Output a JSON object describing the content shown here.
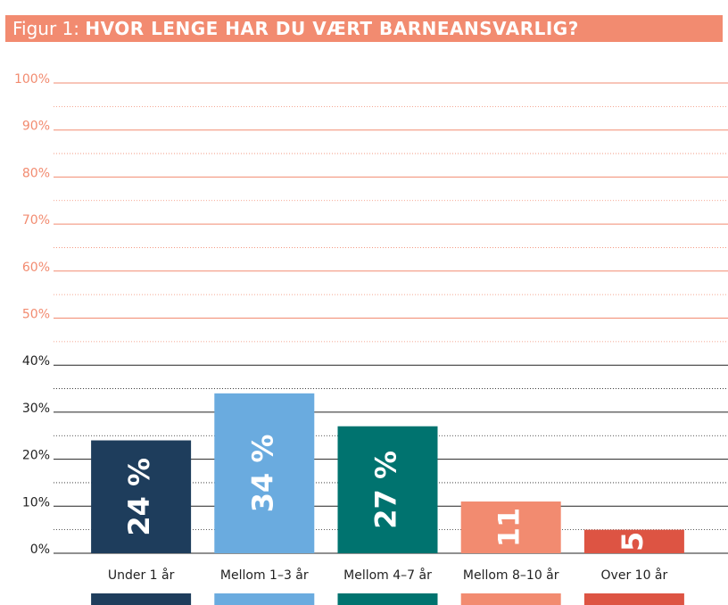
{
  "chart_data": {
    "type": "bar",
    "title_prefix": "Figur 1:",
    "title": "HVOR LENGE HAR DU VÆRT BARNEANSVARLIG?",
    "categories": [
      "Under 1 år",
      "Mellom 1–3 år",
      "Mellom 4–7 år",
      "Mellom 8–10 år",
      "Over 10 år"
    ],
    "values": [
      24,
      34,
      27,
      11,
      5
    ],
    "value_labels": [
      "24 %",
      "34 %",
      "27 %",
      "11",
      "5"
    ],
    "colors": [
      "#1e3d5c",
      "#6aabdf",
      "#00736f",
      "#f28b70",
      "#dd5443"
    ],
    "ylim": [
      0,
      100
    ],
    "yticks": [
      {
        "value": 0,
        "label": "0%"
      },
      {
        "value": 10,
        "label": "10%"
      },
      {
        "value": 20,
        "label": "20%"
      },
      {
        "value": 30,
        "label": "30%"
      },
      {
        "value": 40,
        "label": "40%"
      },
      {
        "value": 50,
        "label": "50%"
      },
      {
        "value": 60,
        "label": "60%"
      },
      {
        "value": 70,
        "label": "70%"
      },
      {
        "value": 80,
        "label": "80%"
      },
      {
        "value": 90,
        "label": "90%"
      },
      {
        "value": 100,
        "label": "100%"
      }
    ],
    "tick_colors": [
      "#222",
      "#222",
      "#222",
      "#222",
      "#222",
      "#f28b70",
      "#f28b70",
      "#f28b70",
      "#f28b70",
      "#f28b70",
      "#f28b70"
    ],
    "grid": true
  }
}
